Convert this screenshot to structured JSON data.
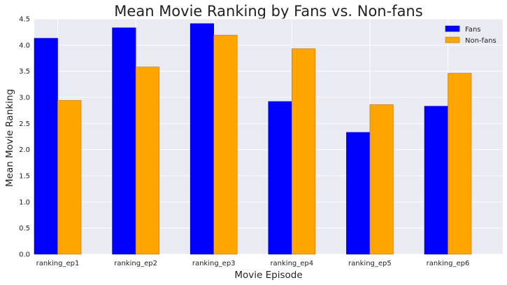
{
  "chart_data": {
    "type": "bar",
    "title": "Mean Movie Ranking by Fans vs. Non-fans",
    "xlabel": "Movie Episode",
    "ylabel": "Mean Movie Ranking",
    "categories": [
      "ranking_ep1",
      "ranking_ep2",
      "ranking_ep3",
      "ranking_ep4",
      "ranking_ep5",
      "ranking_ep6"
    ],
    "series": [
      {
        "name": "Fans",
        "color": "#0000ff",
        "values": [
          4.13,
          4.33,
          4.41,
          2.92,
          2.33,
          2.83
        ]
      },
      {
        "name": "Non-fans",
        "color": "#ffa500",
        "values": [
          2.94,
          3.58,
          4.19,
          3.93,
          2.86,
          3.46
        ]
      }
    ],
    "ylim": [
      0,
      4.5
    ],
    "yticks": [
      "0.0",
      "0.5",
      "1.0",
      "1.5",
      "2.0",
      "2.5",
      "3.0",
      "3.5",
      "4.0",
      "4.5"
    ],
    "grid": true,
    "legend_position": "top-right",
    "background_color": "#eaeaf2"
  }
}
